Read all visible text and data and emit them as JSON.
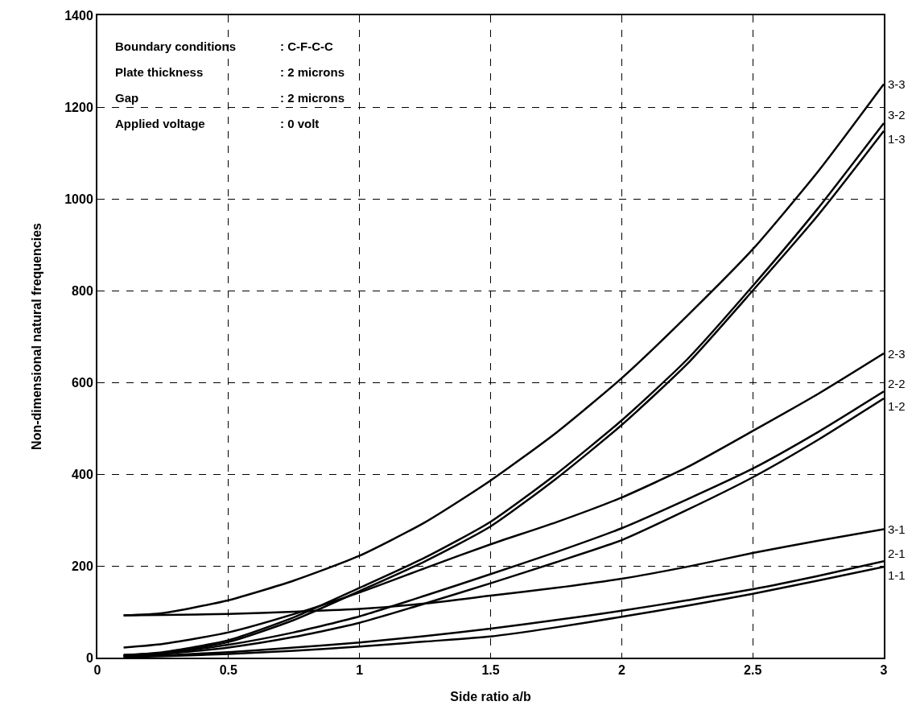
{
  "chart_data": {
    "type": "line",
    "xlabel": "Side ratio a/b",
    "ylabel": "Non-dimensional natural frequencies",
    "x": [
      0.1,
      0.25,
      0.5,
      0.75,
      1,
      1.25,
      1.5,
      1.75,
      2,
      2.25,
      2.5,
      2.75,
      3
    ],
    "series": [
      {
        "name": "3-3",
        "color": "#000000",
        "values": [
          92,
          97,
          125,
          168,
          222,
          295,
          386,
          490,
          609,
          745,
          890,
          1060,
          1250
        ]
      },
      {
        "name": "3-2",
        "color": "#000000",
        "values": [
          5,
          12,
          38,
          88,
          152,
          218,
          296,
          400,
          517,
          650,
          810,
          980,
          1165
        ]
      },
      {
        "name": "1-3",
        "color": "#000000",
        "values": [
          3,
          10,
          34,
          82,
          145,
          210,
          286,
          390,
          507,
          640,
          800,
          965,
          1148
        ]
      },
      {
        "name": "2-3",
        "color": "#000000",
        "values": [
          22,
          30,
          55,
          95,
          142,
          195,
          247,
          295,
          349,
          415,
          494,
          575,
          663
        ]
      },
      {
        "name": "2-2",
        "color": "#000000",
        "values": [
          6,
          10,
          28,
          55,
          90,
          135,
          182,
          230,
          282,
          345,
          412,
          492,
          580
        ]
      },
      {
        "name": "1-2",
        "color": "#000000",
        "values": [
          4,
          8,
          22,
          45,
          76,
          118,
          162,
          208,
          256,
          322,
          393,
          475,
          565
        ]
      },
      {
        "name": "3-1",
        "color": "#000000",
        "values": [
          92,
          93,
          95,
          100,
          106,
          118,
          135,
          152,
          172,
          198,
          228,
          255,
          280
        ]
      },
      {
        "name": "2-1",
        "color": "#000000",
        "values": [
          3,
          5,
          12,
          22,
          33,
          47,
          63,
          82,
          102,
          125,
          149,
          178,
          210
        ]
      },
      {
        "name": "1-1",
        "color": "#000000",
        "values": [
          1,
          3,
          8,
          15,
          24,
          35,
          46,
          66,
          89,
          113,
          139,
          168,
          198
        ]
      }
    ],
    "xlim": [
      0,
      3
    ],
    "xticks": [
      0,
      0.5,
      1,
      1.5,
      2,
      2.5,
      3
    ],
    "ylim": [
      0,
      1400
    ],
    "yticks": [
      0,
      200,
      400,
      600,
      800,
      1000,
      1200,
      1400
    ],
    "grid": true,
    "legend": false,
    "marker": "none",
    "line_style": "solid",
    "annotations": [
      "Boundary conditions",
      ": C-F-C-C",
      "Plate thickness",
      ": 2 microns",
      "Gap",
      ": 2 microns",
      "Applied voltage",
      ": 0 volt"
    ]
  }
}
